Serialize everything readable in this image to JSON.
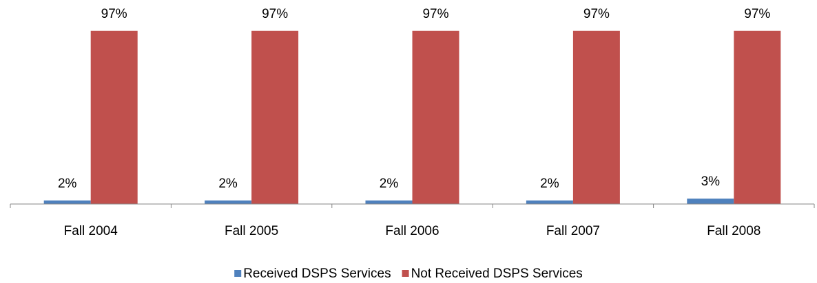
{
  "chart_data": {
    "type": "bar",
    "categories": [
      "Fall 2004",
      "Fall 2005",
      "Fall 2006",
      "Fall 2007",
      "Fall 2008"
    ],
    "series": [
      {
        "name": "Received DSPS Services",
        "color": "#4f81bd",
        "values": [
          2,
          2,
          2,
          2,
          3
        ],
        "value_labels": [
          "2%",
          "2%",
          "2%",
          "2%",
          "3%"
        ]
      },
      {
        "name": "Not Received DSPS Services",
        "color": "#c0504d",
        "values": [
          97,
          97,
          97,
          97,
          97
        ],
        "value_labels": [
          "97%",
          "97%",
          "97%",
          "97%",
          "97%"
        ]
      }
    ],
    "ylim": [
      0,
      100
    ],
    "legend": "bottom"
  }
}
